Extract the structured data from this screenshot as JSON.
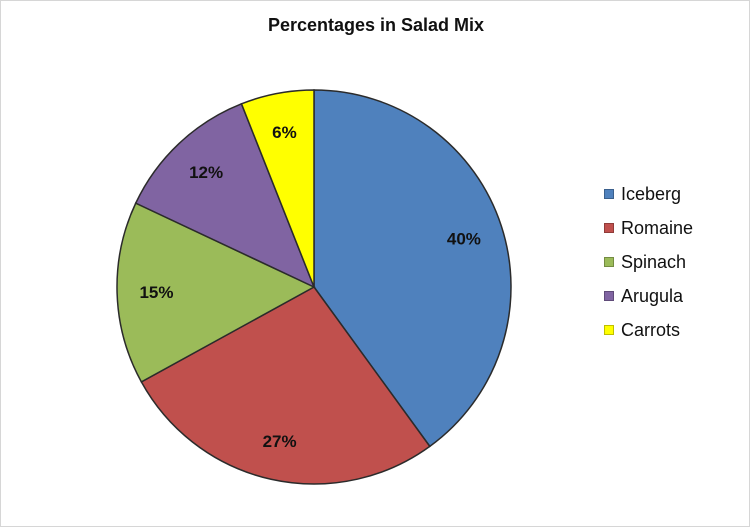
{
  "chart_data": {
    "type": "pie",
    "title": "Percentages in Salad Mix",
    "categories": [
      "Iceberg",
      "Romaine",
      "Spinach",
      "Arugula",
      "Carrots"
    ],
    "values": [
      40,
      27,
      15,
      12,
      6
    ],
    "labels": [
      "40%",
      "27%",
      "15%",
      "12%",
      "6%"
    ],
    "colors": [
      "#4f81bd",
      "#c0504d",
      "#9bbb59",
      "#8064a2",
      "#ffff00"
    ],
    "start_angle": "12 o'clock, clockwise",
    "legend_position": "right"
  }
}
